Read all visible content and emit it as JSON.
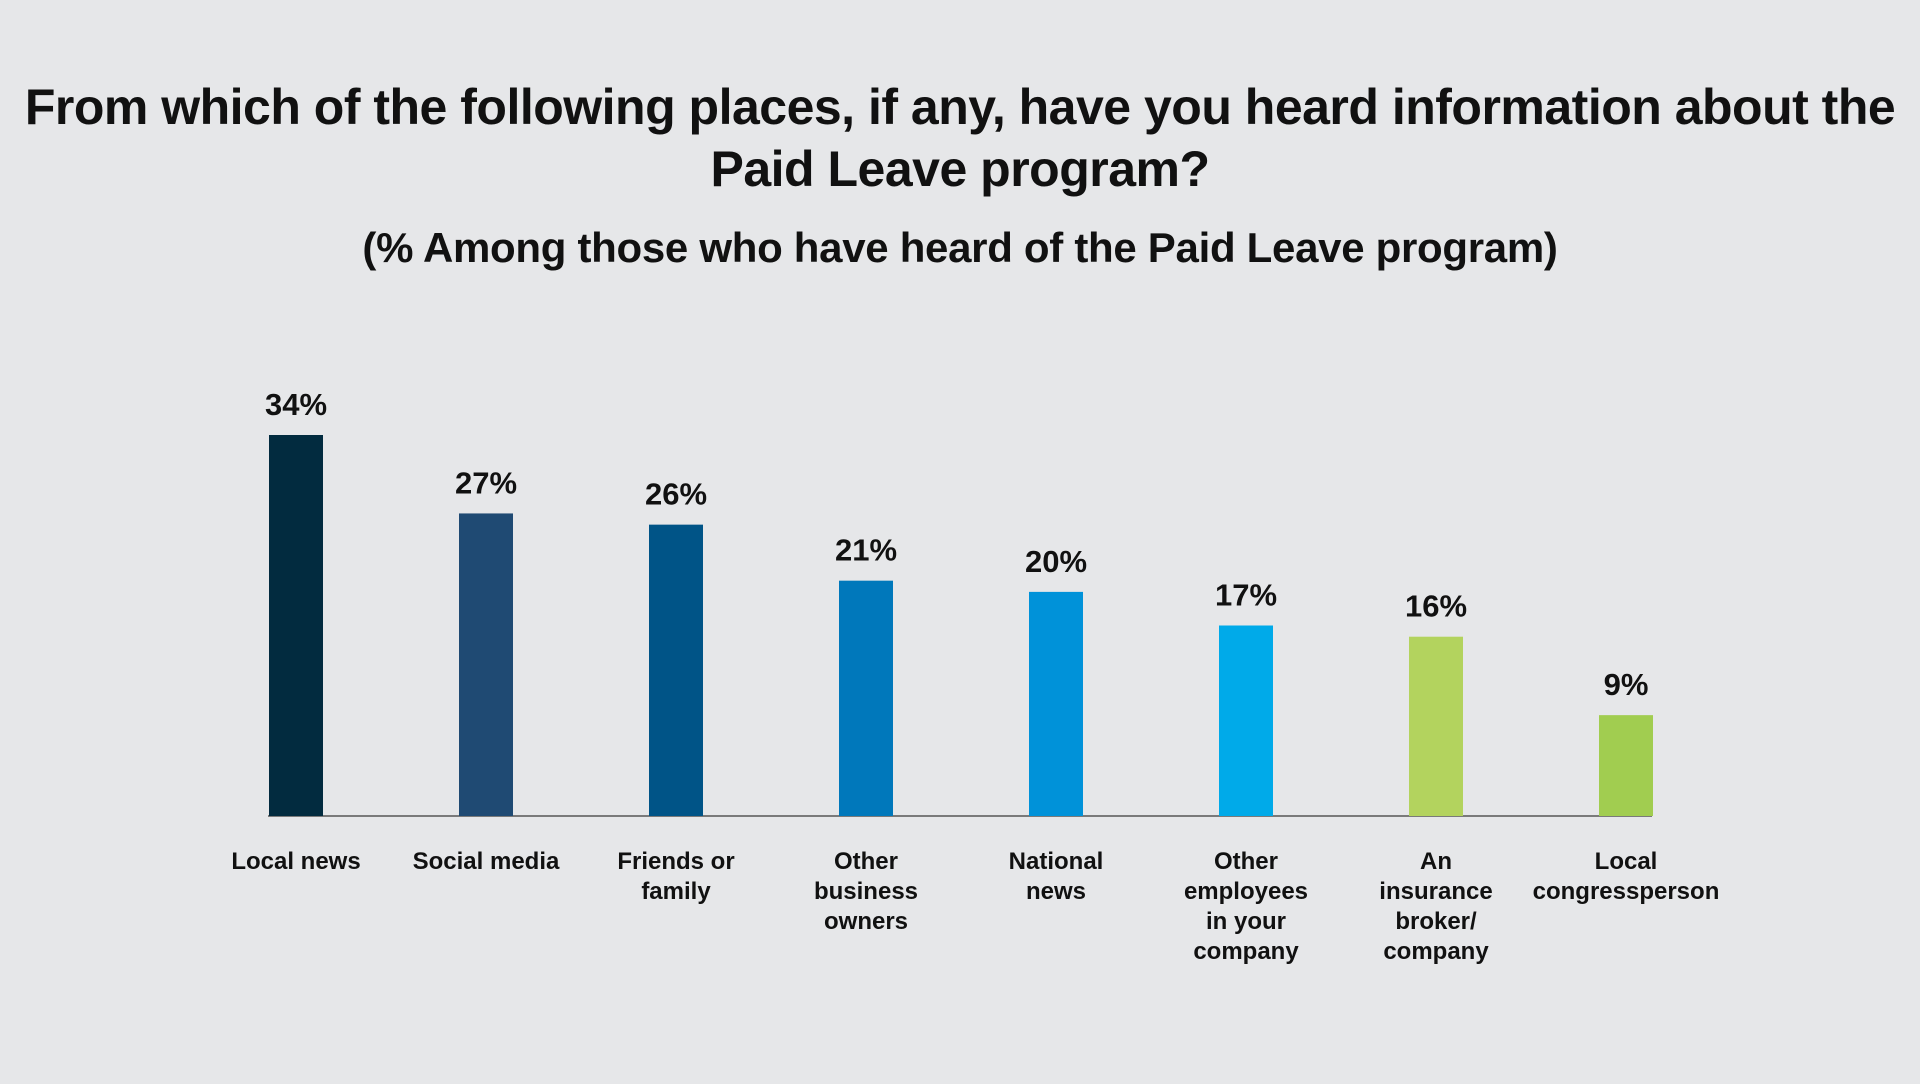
{
  "chart_data": {
    "type": "bar",
    "title": "From which of the following places, if any, have you heard information about the Paid Leave program?",
    "subtitle": "(% Among those who have heard of the Paid Leave program)",
    "categories": [
      [
        "Local news"
      ],
      [
        "Social media"
      ],
      [
        "Friends or",
        "family"
      ],
      [
        "Other",
        "business",
        "owners"
      ],
      [
        "National",
        "news"
      ],
      [
        "Other",
        "employees",
        "in your",
        "company"
      ],
      [
        "An",
        "insurance",
        "broker/",
        "company"
      ],
      [
        "Local",
        "congressperson"
      ]
    ],
    "values": [
      34,
      27,
      26,
      21,
      20,
      17,
      16,
      9
    ],
    "value_labels": [
      "34%",
      "27%",
      "26%",
      "21%",
      "20%",
      "17%",
      "16%",
      "9%"
    ],
    "colors": [
      "#022b3f",
      "#1f4a73",
      "#005487",
      "#0078bb",
      "#0092d9",
      "#00aae9",
      "#b3d35e",
      "#a1cd50"
    ],
    "axis_color": "#7a7a7a",
    "ylim": [
      0,
      34
    ],
    "xlabel": "",
    "ylabel": "",
    "grid": false,
    "legend": "none"
  }
}
